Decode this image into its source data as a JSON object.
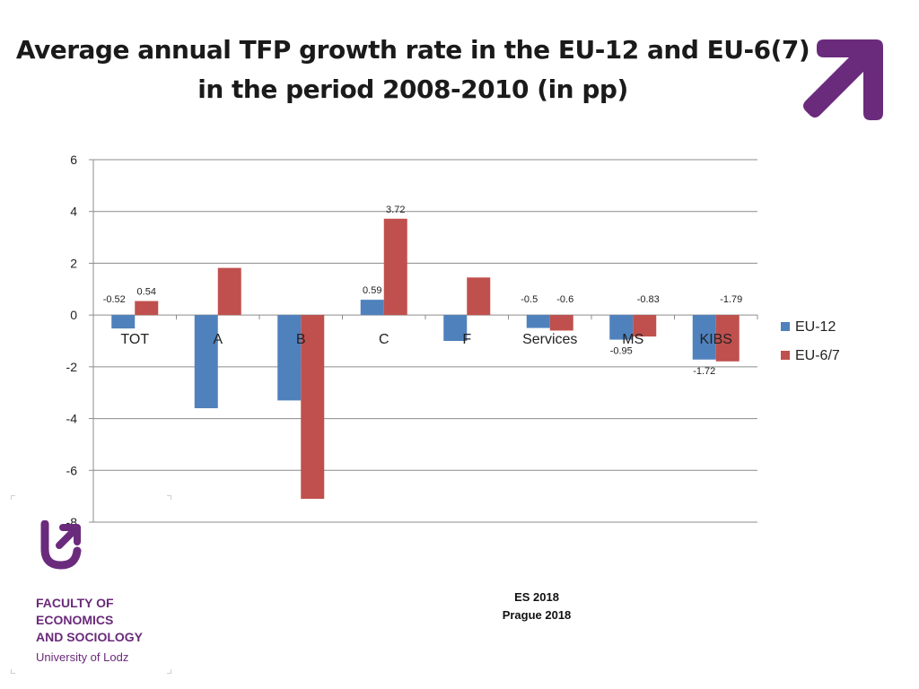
{
  "slide": {
    "title_line1": "Average annual TFP growth rate in the EU-12 and EU-6(7)",
    "title_line2": "in the period 2008-2010 (in pp)",
    "footer_line1": "ES 2018",
    "footer_line2": "Prague 2018",
    "brand": {
      "name_lines": [
        "FACULTY OF",
        "ECONOMICS",
        "AND SOCIOLOGY"
      ],
      "university": "University of Lodz",
      "color": "#6b2b7d"
    }
  },
  "chart_data": {
    "type": "bar",
    "title": "",
    "xlabel": "",
    "ylabel": "",
    "ylim": [
      -8,
      6
    ],
    "yticks": [
      6,
      4,
      2,
      0,
      -2,
      -4,
      -6,
      -8
    ],
    "grid": true,
    "legend": "right",
    "categories": [
      "TOT",
      "A",
      "B",
      "C",
      "F",
      "Services",
      "MS",
      "KIBS"
    ],
    "series": [
      {
        "name": "EU-12",
        "color": "#4f81bd",
        "values": [
          -0.52,
          -3.6,
          -3.3,
          0.59,
          -1.0,
          -0.5,
          -0.95,
          -1.72
        ]
      },
      {
        "name": "EU-6/7",
        "color": "#c0504d",
        "values": [
          0.54,
          1.82,
          -7.1,
          3.72,
          1.45,
          -0.6,
          -0.83,
          -1.79
        ]
      }
    ],
    "data_labels": [
      {
        "series": 0,
        "index": 0,
        "text": "-0.52"
      },
      {
        "series": 1,
        "index": 0,
        "text": "0.54"
      },
      {
        "series": 0,
        "index": 3,
        "text": "0.59"
      },
      {
        "series": 1,
        "index": 3,
        "text": "3.72"
      },
      {
        "series": 0,
        "index": 5,
        "text": "-0.5"
      },
      {
        "series": 1,
        "index": 5,
        "text": "-0.6"
      },
      {
        "series": 0,
        "index": 6,
        "text": "-0.95"
      },
      {
        "series": 1,
        "index": 6,
        "text": "-0.83"
      },
      {
        "series": 0,
        "index": 7,
        "text": "-1.72"
      },
      {
        "series": 1,
        "index": 7,
        "text": "-1.79"
      }
    ]
  }
}
